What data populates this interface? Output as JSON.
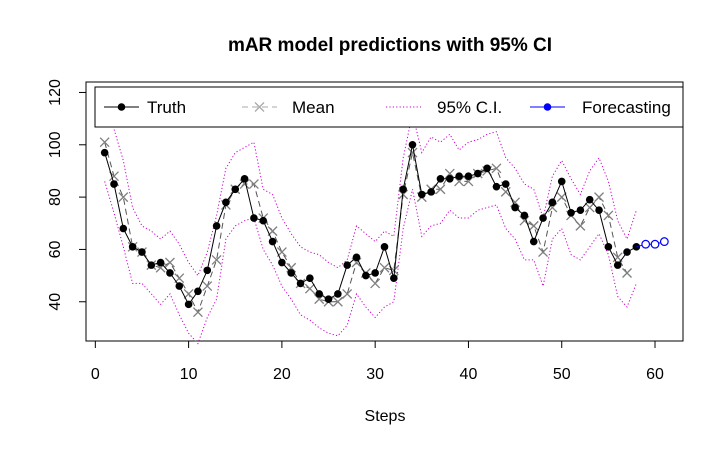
{
  "chart_data": {
    "type": "line",
    "title": "mAR model predictions with 95% CI",
    "xlabel": "Steps",
    "ylabel": "",
    "xlim": [
      -1,
      63
    ],
    "ylim": [
      25,
      124
    ],
    "xticks": [
      0,
      10,
      20,
      30,
      40,
      50,
      60
    ],
    "yticks": [
      40,
      60,
      80,
      100,
      120
    ],
    "legend_position": "top",
    "series": [
      {
        "name": "Truth",
        "color": "#000000",
        "style": "solid line with filled circles",
        "x": [
          1,
          2,
          3,
          4,
          5,
          6,
          7,
          8,
          9,
          10,
          11,
          12,
          13,
          14,
          15,
          16,
          17,
          18,
          19,
          20,
          21,
          22,
          23,
          24,
          25,
          26,
          27,
          28,
          29,
          30,
          31,
          32,
          33,
          34,
          35,
          36,
          37,
          38,
          39,
          40,
          41,
          42,
          43,
          44,
          45,
          46,
          47,
          48,
          49,
          50,
          51,
          52,
          53,
          54,
          55,
          56,
          57,
          58
        ],
        "values": [
          97,
          85,
          68,
          61,
          59,
          54,
          55,
          51,
          46,
          39,
          44,
          52,
          69,
          78,
          83,
          87,
          72,
          71,
          63,
          55,
          51,
          47,
          49,
          43,
          41,
          43,
          54,
          57,
          50,
          51,
          61,
          49,
          83,
          100,
          81,
          82,
          87,
          87,
          88,
          88,
          89,
          91,
          84,
          85,
          76,
          73,
          63,
          72,
          78,
          86,
          74,
          75,
          79,
          75,
          61,
          54,
          59,
          61
        ]
      },
      {
        "name": "Mean",
        "color": "#7f7f7f",
        "style": "dashed line with x markers",
        "x": [
          1,
          2,
          3,
          4,
          5,
          6,
          7,
          8,
          9,
          10,
          11,
          12,
          13,
          14,
          15,
          16,
          17,
          18,
          19,
          20,
          21,
          22,
          23,
          24,
          25,
          26,
          27,
          28,
          29,
          30,
          31,
          32,
          33,
          34,
          35,
          36,
          37,
          38,
          39,
          40,
          41,
          42,
          43,
          44,
          45,
          46,
          47,
          48,
          49,
          50,
          51,
          52,
          53,
          54,
          55,
          56,
          57
        ],
        "values": [
          101,
          88,
          80,
          61,
          59,
          54,
          53,
          55,
          49,
          43,
          36,
          46,
          56,
          77,
          83,
          85,
          85,
          72,
          67,
          59,
          53,
          47,
          45,
          41,
          40,
          40,
          43,
          55,
          51,
          47,
          53,
          52,
          81,
          97,
          80,
          83,
          83,
          89,
          86,
          86,
          89,
          90,
          91,
          82,
          78,
          71,
          69,
          59,
          76,
          80,
          73,
          69,
          76,
          80,
          73,
          57,
          51
        ]
      },
      {
        "name": "95% C.I.",
        "color": "#cc00cc",
        "style": "dotted line",
        "upper_x": [
          1,
          2,
          3,
          4,
          5,
          6,
          7,
          8,
          9,
          10,
          11,
          12,
          13,
          14,
          15,
          16,
          17,
          18,
          19,
          20,
          21,
          22,
          23,
          24,
          25,
          26,
          27,
          28,
          29,
          30,
          31,
          32,
          33,
          34,
          35,
          36,
          37,
          38,
          39,
          40,
          41,
          42,
          43,
          44,
          45,
          46,
          47,
          48,
          49,
          50,
          51,
          52,
          53,
          54,
          55,
          56,
          57,
          58
        ],
        "upper": [
          121,
          106,
          94,
          76,
          69,
          67,
          64,
          67,
          62,
          55,
          50,
          59,
          73,
          91,
          97,
          99,
          101,
          83,
          81,
          72,
          66,
          61,
          59,
          58,
          55,
          53,
          56,
          69,
          66,
          63,
          67,
          65,
          95,
          112,
          97,
          103,
          101,
          104,
          98,
          101,
          102,
          104,
          105,
          95,
          91,
          85,
          83,
          72,
          88,
          94,
          87,
          81,
          90,
          95,
          86,
          71,
          64,
          75
        ],
        "lower_x": [
          1,
          2,
          3,
          4,
          5,
          6,
          7,
          8,
          9,
          10,
          11,
          12,
          13,
          14,
          15,
          16,
          17,
          18,
          19,
          20,
          21,
          22,
          23,
          24,
          25,
          26,
          27,
          28,
          29,
          30,
          31,
          32,
          33,
          34,
          35,
          36,
          37,
          38,
          39,
          40,
          41,
          42,
          43,
          44,
          45,
          46,
          47,
          48,
          49,
          50,
          51,
          52,
          53,
          54,
          55,
          56,
          57,
          58
        ],
        "lower": [
          86,
          74,
          61,
          47,
          47,
          43,
          39,
          43,
          35,
          28,
          24,
          34,
          41,
          64,
          69,
          71,
          72,
          60,
          54,
          46,
          41,
          35,
          33,
          30,
          28,
          27,
          31,
          43,
          38,
          34,
          38,
          40,
          68,
          83,
          65,
          69,
          70,
          75,
          72,
          72,
          75,
          76,
          77,
          68,
          64,
          56,
          56,
          46,
          64,
          68,
          58,
          56,
          61,
          66,
          58,
          42,
          38,
          47
        ]
      },
      {
        "name": "Forecasting",
        "color": "#0000ff",
        "style": "solid line with open circles",
        "x": [
          58,
          59,
          60,
          61
        ],
        "values": [
          61,
          62,
          62,
          63
        ]
      }
    ]
  }
}
